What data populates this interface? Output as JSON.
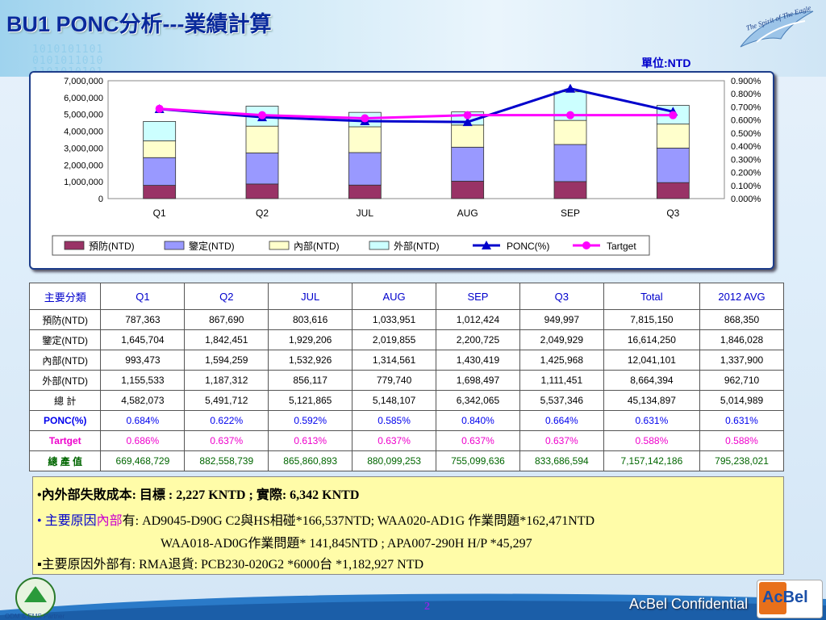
{
  "title": "BU1  PONC分析---業績計算",
  "unit_label": "單位:NTD",
  "header_logo_text": "The Spirit of The Eagle",
  "footer": {
    "confidential": "AcBel Confidential",
    "page": "2",
    "acbel_logo": "AcBel",
    "badge_text": "ODM & EMS Partner"
  },
  "colors": {
    "prevention": "#993366",
    "appraisal": "#9999ff",
    "internal": "#ffffcc",
    "external": "#ccffff",
    "ponc": "#0000cc",
    "target": "#ff00ff"
  },
  "chart_data": {
    "type": "bar",
    "stacked": true,
    "categories": [
      "Q1",
      "Q2",
      "JUL",
      "AUG",
      "SEP",
      "Q3"
    ],
    "series": [
      {
        "name": "預防(NTD)",
        "values": [
          787363,
          867690,
          803616,
          1033951,
          1012424,
          949997
        ]
      },
      {
        "name": "鑒定(NTD)",
        "values": [
          1645704,
          1842451,
          1929206,
          2019855,
          2200725,
          2049929
        ]
      },
      {
        "name": "內部(NTD)",
        "values": [
          993473,
          1594259,
          1532926,
          1314561,
          1430419,
          1425968
        ]
      },
      {
        "name": "外部(NTD)",
        "values": [
          1155533,
          1187312,
          856117,
          779740,
          1698497,
          1111451
        ]
      }
    ],
    "line_series": [
      {
        "name": "PONC(%)",
        "values": [
          0.684,
          0.622,
          0.592,
          0.585,
          0.84,
          0.664
        ],
        "axis": "right"
      },
      {
        "name": "Tartget",
        "values": [
          0.686,
          0.637,
          0.613,
          0.637,
          0.637,
          0.637
        ],
        "axis": "right"
      }
    ],
    "ylim": [
      0,
      7000000
    ],
    "y_ticks": [
      "7,000,000",
      "6,000,000",
      "5,000,000",
      "4,000,000",
      "3,000,000",
      "2,000,000",
      "1,000,000",
      "0"
    ],
    "y2lim": [
      0,
      0.9
    ],
    "y2_ticks": [
      "0.900%",
      "0.800%",
      "0.700%",
      "0.600%",
      "0.500%",
      "0.400%",
      "0.300%",
      "0.200%",
      "0.100%",
      "0.000%"
    ],
    "legend": "bottom"
  },
  "table": {
    "headers": [
      "主要分類",
      "Q1",
      "Q2",
      "JUL",
      "AUG",
      "SEP",
      "Q3",
      "Total",
      "2012 AVG"
    ],
    "rows": [
      {
        "label": "預防(NTD)",
        "cells": [
          "787,363",
          "867,690",
          "803,616",
          "1,033,951",
          "1,012,424",
          "949,997",
          "7,815,150",
          "868,350"
        ]
      },
      {
        "label": "鑒定(NTD)",
        "cells": [
          "1,645,704",
          "1,842,451",
          "1,929,206",
          "2,019,855",
          "2,200,725",
          "2,049,929",
          "16,614,250",
          "1,846,028"
        ]
      },
      {
        "label": "內部(NTD)",
        "cells": [
          "993,473",
          "1,594,259",
          "1,532,926",
          "1,314,561",
          "1,430,419",
          "1,425,968",
          "12,041,101",
          "1,337,900"
        ]
      },
      {
        "label": "外部(NTD)",
        "cells": [
          "1,155,533",
          "1,187,312",
          "856,117",
          "779,740",
          "1,698,497",
          "1,111,451",
          "8,664,394",
          "962,710"
        ]
      },
      {
        "label": "總 計",
        "cells": [
          "4,582,073",
          "5,491,712",
          "5,121,865",
          "5,148,107",
          "6,342,065",
          "5,537,346",
          "45,134,897",
          "5,014,989"
        ]
      },
      {
        "label": "PONC(%)",
        "cells": [
          "0.684%",
          "0.622%",
          "0.592%",
          "0.585%",
          "0.840%",
          "0.664%",
          "0.631%",
          "0.631%"
        ]
      },
      {
        "label": "Tartget",
        "cells": [
          "0.686%",
          "0.637%",
          "0.613%",
          "0.637%",
          "0.637%",
          "0.637%",
          "0.588%",
          "0.588%"
        ]
      },
      {
        "label": "總 產 值",
        "cells": [
          "669,468,729",
          "882,558,739",
          "865,860,893",
          "880,099,253",
          "755,099,636",
          "833,686,594",
          "7,157,142,186",
          "795,238,021"
        ]
      }
    ]
  },
  "notes": {
    "line1": "•內外部失敗成本: 目標 :  2,227 KNTD  ; 實際: 6,342 KNTD",
    "line2_prefix": "• 主要原因",
    "line2_highlight": "內部",
    "line2_rest": "有: AD9045-D90G  C2與HS相碰*166,537NTD; WAA020-AD1G 作業問題*162,471NTD",
    "line3": "WAA018-AD0G作業問題* 141,845NTD ; APA007-290H H/P *45,297",
    "line4": "▪主要原因外部有: RMA退貨: PCB230-020G2 *6000台 *1,182,927 NTD"
  }
}
